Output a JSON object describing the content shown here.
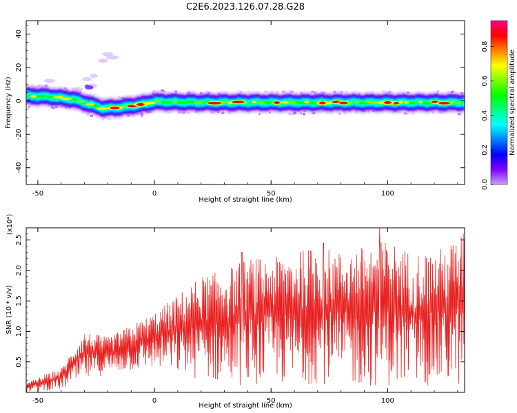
{
  "title": "C2E6.2023.126.07.28.G28",
  "chart_data": [
    {
      "type": "heatmap",
      "xlabel": "Height of straight line (km)",
      "ylabel": "Frequency (Hz)",
      "xlim": [
        -55,
        133
      ],
      "ylim": [
        -50,
        48
      ],
      "xticks": [
        -50,
        0,
        50,
        100
      ],
      "yticks": [
        -40,
        -20,
        0,
        20,
        40
      ],
      "colorbar": {
        "label": "Normalized spectral amplitude",
        "range": [
          0.0,
          0.95
        ],
        "ticks": [
          0.0,
          0.2,
          0.4,
          0.6,
          0.8
        ],
        "tick_labels": [
          "0.0",
          "0.2",
          "0.4",
          "0.6",
          "0.8"
        ],
        "colors": [
          "#c8a0ff",
          "#8000ff",
          "#0000ff",
          "#0080ff",
          "#00ffff",
          "#00ff80",
          "#00ff00",
          "#80ff00",
          "#ffff00",
          "#ff8000",
          "#ff0000",
          "#ff0080"
        ]
      },
      "ridge": {
        "x": [
          -55,
          -45,
          -35,
          -28,
          -22,
          -15,
          -10,
          -5,
          0,
          20,
          50,
          80,
          110,
          133
        ],
        "frequency": [
          3,
          2.5,
          1,
          -2,
          -4.5,
          -4,
          -3,
          -2,
          -0.5,
          -1,
          -1,
          -1,
          -1,
          -1
        ]
      },
      "grid": false
    },
    {
      "type": "line",
      "xlabel": "Height of straight line (km)",
      "ylabel": "SNR (10 * v/v)",
      "yscale_label": "(x10⁴)",
      "xlim": [
        -55,
        133
      ],
      "ylim": [
        0,
        2.7
      ],
      "xticks": [
        -50,
        0,
        50,
        100
      ],
      "yticks": [
        0.5,
        1.0,
        1.5,
        2.0,
        2.5
      ],
      "ytick_labels": [
        "0.5",
        "1.0",
        "1.5",
        "2.0",
        "2.5"
      ],
      "line_color": "#e82020",
      "envelope": {
        "x": [
          -55,
          -40,
          -30,
          -20,
          -10,
          0,
          10,
          20,
          30,
          40,
          50,
          60,
          70,
          80,
          90,
          100,
          110,
          120,
          133
        ],
        "lower": [
          0.0,
          0.05,
          0.2,
          0.3,
          0.35,
          0.4,
          0.3,
          0.2,
          0.15,
          0.1,
          0.15,
          0.1,
          0.15,
          0.1,
          0.1,
          0.1,
          0.1,
          0.1,
          0.1
        ],
        "upper": [
          0.15,
          0.4,
          1.0,
          0.9,
          1.1,
          1.3,
          1.6,
          1.9,
          2.0,
          2.2,
          2.2,
          2.3,
          2.4,
          2.3,
          2.4,
          2.5,
          2.3,
          2.3,
          2.6
        ]
      },
      "peaks": [
        {
          "x": 96.5,
          "y": 2.7
        },
        {
          "x": 132.5,
          "y": 2.6
        },
        {
          "x": 72.5,
          "y": 2.45
        },
        {
          "x": 37.5,
          "y": 2.3
        },
        {
          "x": 62.5,
          "y": 2.3
        }
      ],
      "grid": false
    }
  ]
}
